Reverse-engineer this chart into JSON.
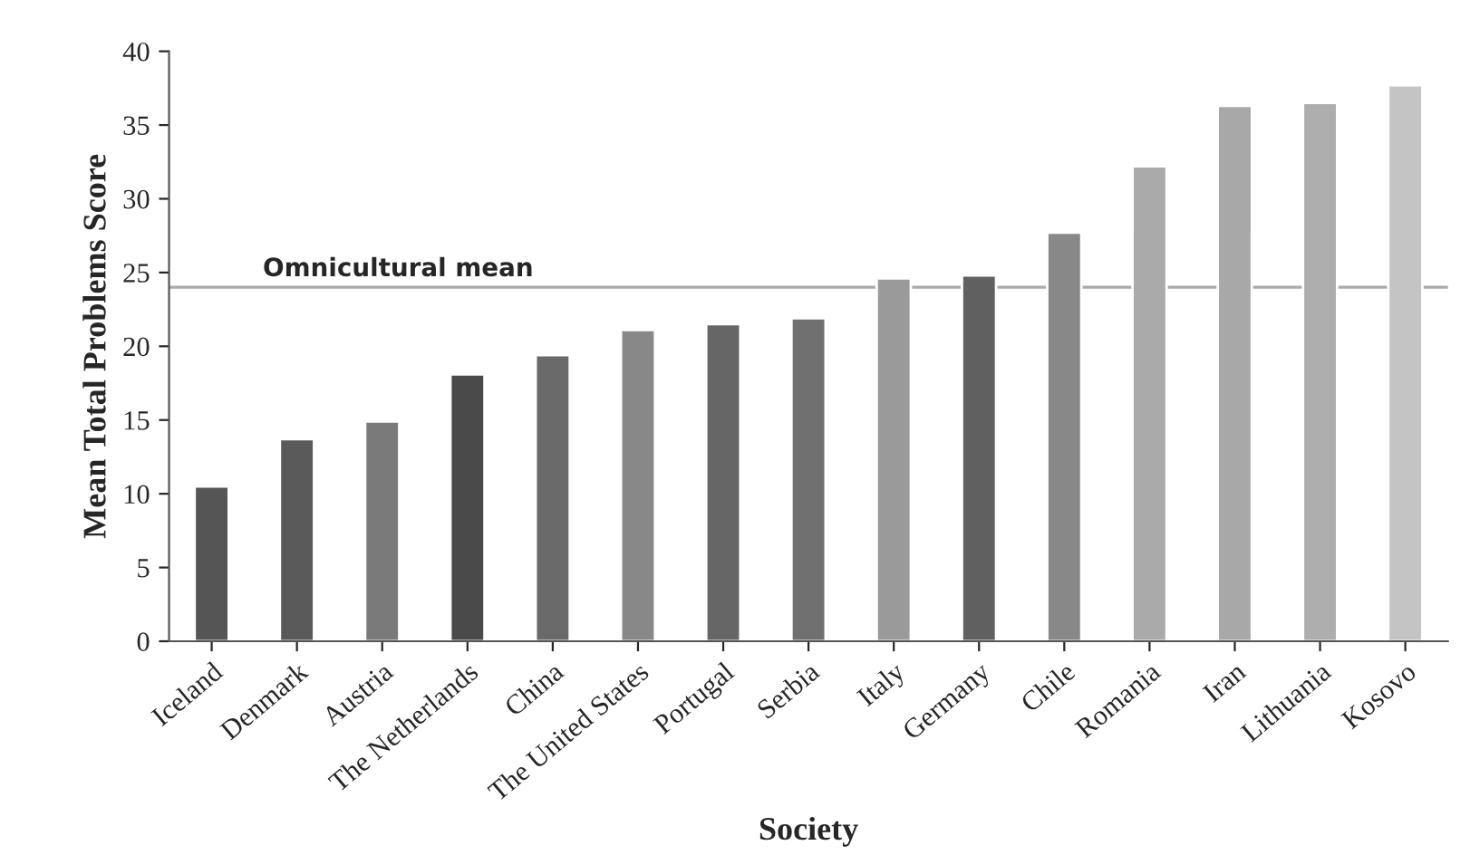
{
  "chart_data": {
    "type": "bar",
    "xlabel": "Society",
    "ylabel": "Mean Total Problems Score",
    "categories": [
      "Iceland",
      "Denmark",
      "Austria",
      "The Netherlands",
      "China",
      "The United States",
      "Portugal",
      "Serbia",
      "Italy",
      "Germany",
      "Chile",
      "Romania",
      "Iran",
      "Lithuania",
      "Kosovo"
    ],
    "values": [
      10.5,
      13.7,
      14.9,
      18.1,
      19.4,
      21.1,
      21.5,
      21.9,
      24.6,
      24.8,
      27.7,
      32.2,
      36.3,
      36.5,
      37.7
    ],
    "colors": [
      "#555555",
      "#5a5a5a",
      "#7a7a7a",
      "#4a4a4a",
      "#6a6a6a",
      "#888888",
      "#666666",
      "#707070",
      "#9a9a9a",
      "#606060",
      "#888888",
      "#aaaaaa",
      "#a8a8a8",
      "#aeaeae",
      "#c4c4c4"
    ],
    "ylim": [
      0,
      40
    ],
    "yticks": [
      0,
      5,
      10,
      15,
      20,
      25,
      30,
      35,
      40
    ],
    "ref_lines": [
      {
        "axis": "y",
        "value": 24,
        "label": "Omnicultural mean",
        "color": "#aaaaaa"
      }
    ],
    "grid": false,
    "legend": false
  }
}
